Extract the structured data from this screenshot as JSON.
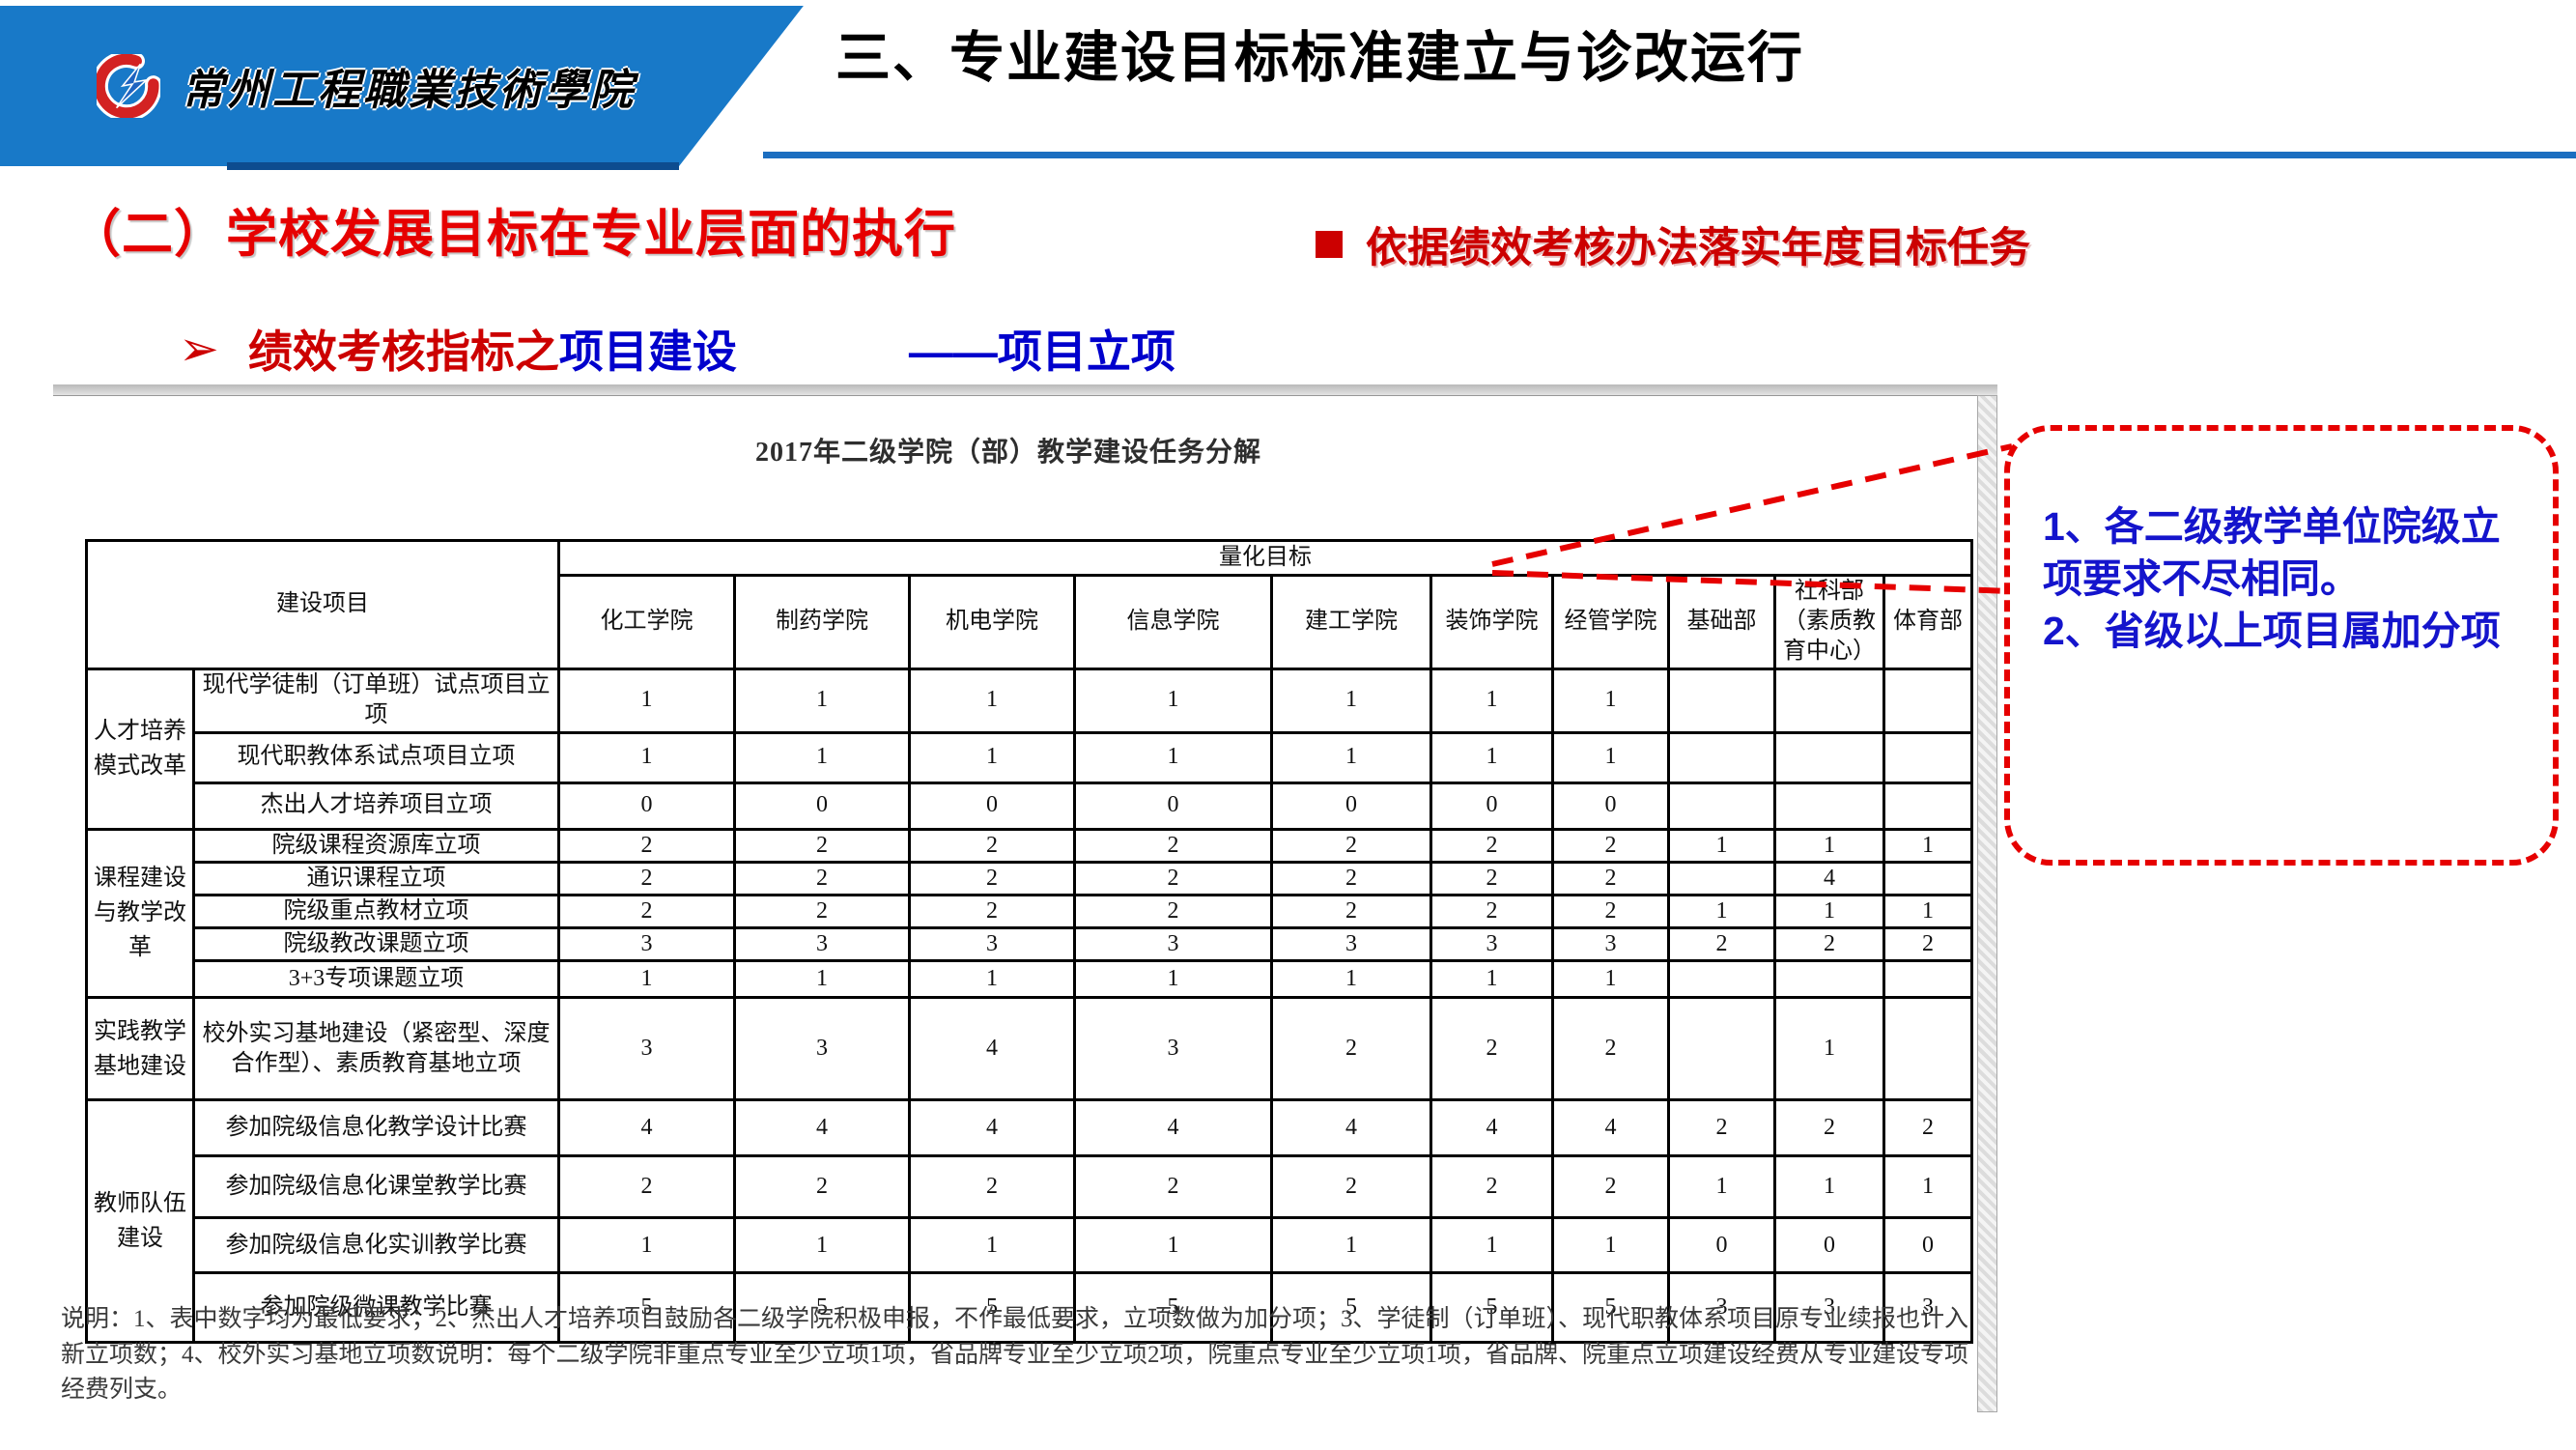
{
  "header": {
    "school_name": "常州工程職業技術學院",
    "title": "三、专业建设目标标准建立与诊改运行"
  },
  "section": {
    "heading": "（二）学校发展目标在专业层面的执行",
    "bullet_text": "依据绩效考核办法落实年度目标任务"
  },
  "indicator": {
    "arrow": "➢",
    "red_part": "绩效考核指标之",
    "blue_part": "项目建设",
    "dash_part": "——项目立项"
  },
  "callout": {
    "line1": "1、各二级教学单位院级立项要求不尽相同。",
    "line2": "2、省级以上项目属加分项"
  },
  "table": {
    "title": "2017年二级学院（部）教学建设任务分解",
    "header": {
      "col1": "建设项目",
      "group_header": "量化目标",
      "columns": [
        "化工学院",
        "制药学院",
        "机电学院",
        "信息学院",
        "建工学院",
        "装饰学院",
        "经管学院",
        "基础部",
        "社科部（素质教育中心）",
        "体育部"
      ]
    },
    "groups": [
      {
        "category": "人才培养模式改革",
        "rows": [
          {
            "label": "现代学徒制（订单班）试点项目立项",
            "values": [
              "1",
              "1",
              "1",
              "1",
              "1",
              "1",
              "1",
              "",
              "",
              ""
            ]
          },
          {
            "label": "现代职教体系试点项目立项",
            "values": [
              "1",
              "1",
              "1",
              "1",
              "1",
              "1",
              "1",
              "",
              "",
              ""
            ]
          },
          {
            "label": "杰出人才培养项目立项",
            "values": [
              "0",
              "0",
              "0",
              "0",
              "0",
              "0",
              "0",
              "",
              "",
              ""
            ]
          }
        ]
      },
      {
        "category": "课程建设与教学改革",
        "rows": [
          {
            "label": "院级课程资源库立项",
            "values": [
              "2",
              "2",
              "2",
              "2",
              "2",
              "2",
              "2",
              "1",
              "1",
              "1"
            ]
          },
          {
            "label": "通识课程立项",
            "values": [
              "2",
              "2",
              "2",
              "2",
              "2",
              "2",
              "2",
              "",
              "4",
              ""
            ]
          },
          {
            "label": "院级重点教材立项",
            "values": [
              "2",
              "2",
              "2",
              "2",
              "2",
              "2",
              "2",
              "1",
              "1",
              "1"
            ]
          },
          {
            "label": "院级教改课题立项",
            "values": [
              "3",
              "3",
              "3",
              "3",
              "3",
              "3",
              "3",
              "2",
              "2",
              "2"
            ]
          },
          {
            "label": "3+3专项课题立项",
            "values": [
              "1",
              "1",
              "1",
              "1",
              "1",
              "1",
              "1",
              "",
              "",
              ""
            ]
          }
        ]
      },
      {
        "category": "实践教学基地建设",
        "rows": [
          {
            "label": "校外实习基地建设（紧密型、深度合作型）、素质教育基地立项",
            "values": [
              "3",
              "3",
              "4",
              "3",
              "2",
              "2",
              "2",
              "",
              "1",
              ""
            ]
          }
        ]
      },
      {
        "category": "教师队伍建设",
        "rows": [
          {
            "label": "参加院级信息化教学设计比赛",
            "values": [
              "4",
              "4",
              "4",
              "4",
              "4",
              "4",
              "4",
              "2",
              "2",
              "2"
            ]
          },
          {
            "label": "参加院级信息化课堂教学比赛",
            "values": [
              "2",
              "2",
              "2",
              "2",
              "2",
              "2",
              "2",
              "1",
              "1",
              "1"
            ]
          },
          {
            "label": "参加院级信息化实训教学比赛",
            "values": [
              "1",
              "1",
              "1",
              "1",
              "1",
              "1",
              "1",
              "0",
              "0",
              "0"
            ]
          },
          {
            "label": "参加院级微课教学比赛",
            "values": [
              "5",
              "5",
              "5",
              "5",
              "5",
              "5",
              "5",
              "3",
              "3",
              "3"
            ]
          }
        ]
      }
    ],
    "note": "说明：1、表中数字均为最低要求；2、杰出人才培养项目鼓励各二级学院积极申报，不作最低要求，立项数做为加分项；3、学徒制（订单班）、现代职教体系项目原专业续报也计入新立项数；4、校外实习基地立项数说明：每个二级学院非重点专业至少立项1项，省品牌专业至少立项2项，院重点专业至少立项1项，省品牌、院重点立项建设经费从专业建设专项经费列支。"
  },
  "colors": {
    "banner-blue": "#1879C8",
    "divider-blue": "#1C6EC0",
    "title-black": "#000000",
    "heading-red": "#E60000",
    "accent-red": "#CC0000",
    "link-blue": "#0000CC",
    "callout-border": "#E60000",
    "callout-text": "#1414CC",
    "table-border": "#000000",
    "note-gray": "#3A3A3A"
  }
}
